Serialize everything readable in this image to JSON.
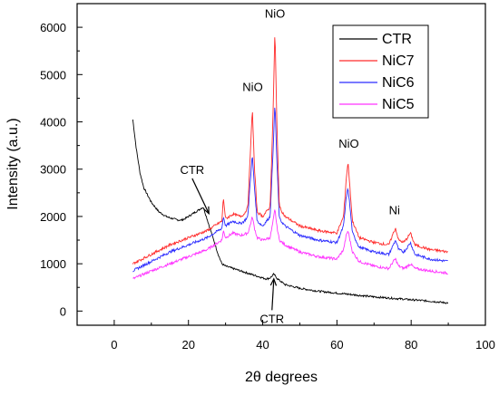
{
  "chart_data": {
    "type": "line",
    "title": "",
    "xlabel": "2θ degrees",
    "ylabel": "Intensity (a.u.)",
    "xlim": [
      -10,
      100
    ],
    "ylim": [
      -300,
      6500
    ],
    "x_ticks": [
      0,
      20,
      40,
      60,
      80,
      100
    ],
    "y_ticks": [
      0,
      1000,
      2000,
      3000,
      4000,
      5000,
      6000
    ],
    "grid": false,
    "legend": {
      "position": "top-right"
    },
    "series": [
      {
        "name": "CTR",
        "color": "#000000",
        "x": [
          5,
          6,
          7,
          8,
          9,
          10,
          11,
          12,
          13,
          14,
          15,
          16,
          17,
          18,
          19,
          20,
          21,
          22,
          23,
          24,
          25,
          26,
          27,
          28,
          29,
          30,
          32,
          34,
          36,
          38,
          40,
          41,
          42,
          43,
          44,
          45,
          46,
          48,
          50,
          55,
          60,
          65,
          70,
          75,
          80,
          85,
          90
        ],
        "y": [
          4050,
          3400,
          2900,
          2600,
          2450,
          2300,
          2200,
          2100,
          2050,
          2000,
          1970,
          1950,
          1930,
          1920,
          1950,
          2000,
          2050,
          2100,
          2150,
          2200,
          1950,
          1700,
          1450,
          1200,
          1000,
          950,
          900,
          850,
          800,
          750,
          700,
          680,
          700,
          780,
          680,
          620,
          560,
          520,
          480,
          420,
          380,
          340,
          300,
          270,
          240,
          210,
          170
        ]
      },
      {
        "name": "NiC7",
        "color": "#ff2a2a",
        "x": [
          5,
          10,
          15,
          20,
          25,
          27,
          29,
          29.4,
          30,
          31,
          32,
          34,
          35,
          36,
          36.6,
          37.2,
          37.8,
          38.5,
          40,
          42,
          42.8,
          43.3,
          43.8,
          44.5,
          46,
          50,
          55,
          60,
          61.8,
          62.5,
          63,
          63.5,
          64.2,
          66,
          70,
          74,
          75.2,
          75.8,
          76.6,
          78,
          79,
          79.8,
          81,
          85,
          90
        ],
        "y": [
          1000,
          1200,
          1400,
          1550,
          1700,
          1800,
          1900,
          2400,
          1950,
          2000,
          2050,
          2000,
          2050,
          2200,
          3200,
          4300,
          3000,
          2100,
          2000,
          2200,
          4200,
          5950,
          4000,
          2200,
          2000,
          1800,
          1700,
          1650,
          2000,
          2800,
          3150,
          2600,
          1900,
          1550,
          1450,
          1400,
          1650,
          1750,
          1500,
          1450,
          1550,
          1650,
          1400,
          1300,
          1250
        ]
      },
      {
        "name": "NiC6",
        "color": "#2a2aff",
        "x": [
          5,
          10,
          15,
          20,
          25,
          27,
          29,
          29.4,
          30,
          31,
          32,
          34,
          35,
          36,
          36.6,
          37.2,
          37.8,
          38.5,
          40,
          42,
          42.8,
          43.3,
          43.8,
          44.5,
          46,
          50,
          55,
          60,
          61.8,
          62.5,
          63,
          63.5,
          64.2,
          66,
          70,
          74,
          75.2,
          75.8,
          76.6,
          78,
          79,
          79.8,
          81,
          85,
          90
        ],
        "y": [
          850,
          1050,
          1250,
          1400,
          1550,
          1650,
          1750,
          2000,
          1800,
          1850,
          1900,
          1850,
          1900,
          2000,
          2700,
          3300,
          2600,
          1900,
          1800,
          2000,
          3400,
          4400,
          3200,
          1950,
          1800,
          1600,
          1500,
          1450,
          1800,
          2400,
          2600,
          2200,
          1650,
          1350,
          1250,
          1200,
          1400,
          1500,
          1300,
          1250,
          1350,
          1450,
          1200,
          1100,
          1050
        ]
      },
      {
        "name": "NiC5",
        "color": "#ff33ff",
        "x": [
          5,
          10,
          15,
          20,
          25,
          27,
          29,
          29.4,
          30,
          31,
          32,
          34,
          35,
          36,
          36.6,
          37.2,
          37.8,
          38.5,
          40,
          42,
          42.8,
          43.3,
          43.8,
          44.5,
          46,
          50,
          55,
          60,
          61.8,
          62.5,
          63,
          63.5,
          64.2,
          66,
          70,
          74,
          75.2,
          75.8,
          76.6,
          78,
          79,
          79.8,
          81,
          85,
          90
        ],
        "y": [
          680,
          850,
          1000,
          1150,
          1300,
          1400,
          1500,
          1700,
          1550,
          1600,
          1650,
          1600,
          1620,
          1650,
          1800,
          2000,
          1750,
          1550,
          1500,
          1550,
          1900,
          2150,
          1800,
          1500,
          1400,
          1250,
          1150,
          1100,
          1300,
          1600,
          1700,
          1500,
          1250,
          1050,
          950,
          900,
          1050,
          1100,
          950,
          900,
          950,
          1000,
          900,
          850,
          800
        ]
      }
    ],
    "annotations": [
      {
        "text": "NiO",
        "x": 43.3,
        "y": 6200
      },
      {
        "text": "NiO",
        "x": 37.3,
        "y": 4650
      },
      {
        "text": "NiO",
        "x": 63.2,
        "y": 3450
      },
      {
        "text": "Ni",
        "x": 75.5,
        "y": 2050
      },
      {
        "text": "CTR",
        "x": 21,
        "y": 2900,
        "arrow_to": [
          25.5,
          2060
        ]
      },
      {
        "text": "CTR",
        "x": 42.5,
        "y": -250,
        "arrow_to": [
          43,
          680
        ]
      }
    ]
  }
}
